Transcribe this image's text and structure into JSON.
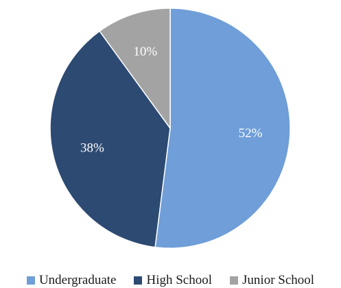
{
  "chart_data": {
    "type": "pie",
    "title": "",
    "categories": [
      "Undergraduate",
      "High School",
      "Junior School"
    ],
    "values": [
      52,
      38,
      10
    ],
    "labels": [
      "52%",
      "38%",
      "10%"
    ],
    "colors": [
      "#6f9ed8",
      "#2d4a72",
      "#a3a3a3"
    ],
    "start_angle": "12 o'clock, clockwise",
    "legend_position": "bottom"
  }
}
